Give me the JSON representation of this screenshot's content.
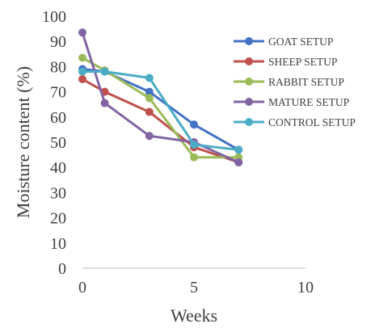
{
  "chart_data": {
    "type": "line",
    "xlabel": "Weeks",
    "ylabel": "Moisture content (%)",
    "xlim": [
      0,
      10
    ],
    "ylim": [
      0,
      100
    ],
    "x_ticks": [
      "0",
      "5",
      "10"
    ],
    "y_ticks": [
      "0",
      "10",
      "20",
      "30",
      "40",
      "50",
      "60",
      "70",
      "80",
      "90",
      "100"
    ],
    "grid": false,
    "legend_position": "right",
    "x": [
      0,
      1,
      3,
      5,
      7
    ],
    "series": [
      {
        "name": "GOAT SETUP",
        "color": "#4472c4",
        "values": [
          79,
          78,
          70,
          57,
          47
        ]
      },
      {
        "name": "SHEEP SETUP",
        "color": "#c0504d",
        "values": [
          75,
          70,
          62,
          48,
          42
        ]
      },
      {
        "name": "RABBIT SETUP",
        "color": "#9bbb59",
        "values": [
          83.5,
          78.5,
          67.5,
          44,
          44
        ]
      },
      {
        "name": "MATURE SETUP",
        "color": "#8064a2",
        "values": [
          93.5,
          65.5,
          52.5,
          50,
          42
        ]
      },
      {
        "name": "CONTROL SETUP",
        "color": "#4bacc6",
        "values": [
          78,
          78,
          75.5,
          49,
          47
        ]
      }
    ]
  }
}
